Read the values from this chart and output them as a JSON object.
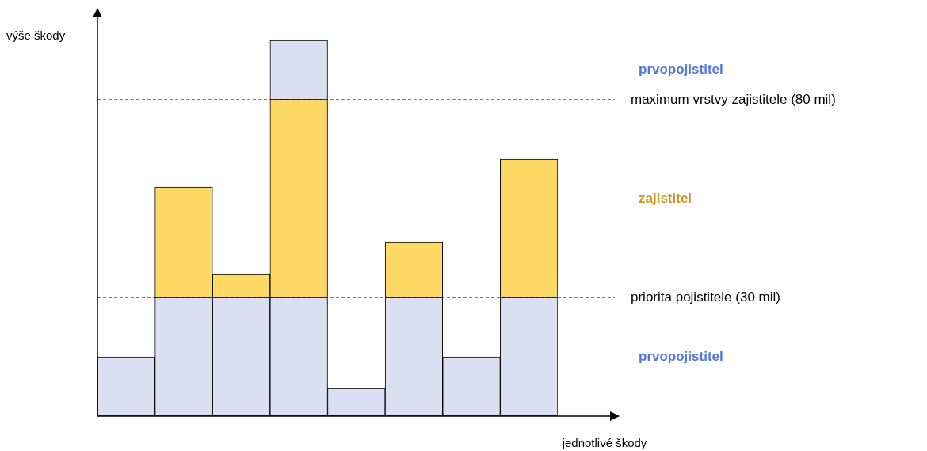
{
  "chart_data": {
    "type": "bar",
    "stacked": true,
    "xlabel": "jednotlivé škody",
    "ylabel": "výše škody",
    "categories": [
      null,
      null,
      null,
      null,
      null,
      null,
      null,
      null
    ],
    "series": [
      {
        "name": "prvopojistitel",
        "color": "#dae0f2",
        "values": [
          15,
          30,
          30,
          30,
          7,
          30,
          15,
          30
        ]
      },
      {
        "name": "zajistitel",
        "color": "#ffd966",
        "values": [
          null,
          28,
          6,
          50,
          null,
          14,
          null,
          35
        ]
      },
      {
        "name": "prvopojistitel",
        "color": "#dae0f2",
        "values": [
          null,
          null,
          null,
          15,
          null,
          null,
          null,
          null
        ]
      }
    ],
    "ylim": [
      0,
      102
    ],
    "tick_labels": false,
    "grid": false,
    "legend": false,
    "ref_lines": [
      {
        "axis": "y",
        "value": 80,
        "label": "maximum vrstvy zajistitele (80 mil)",
        "line_style": "dashed"
      },
      {
        "axis": "y",
        "value": 30,
        "label": "priorita pojistitele (30 mil)",
        "line_style": "dashed"
      }
    ]
  }
}
